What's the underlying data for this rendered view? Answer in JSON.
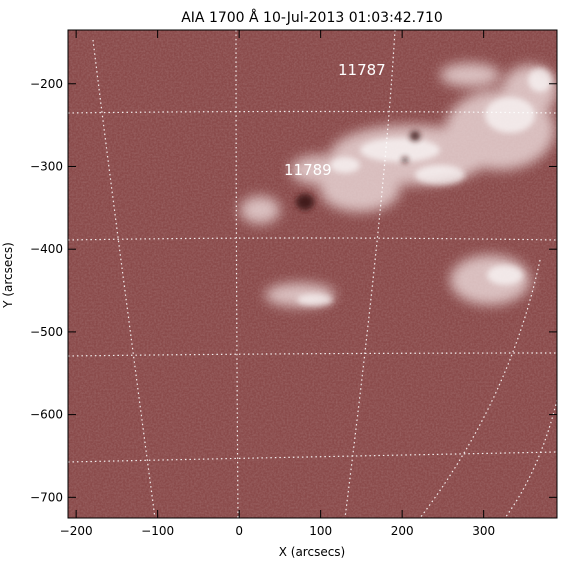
{
  "title": "AIA 1700 Å 10-Jul-2013 01:03:42.710",
  "x_axis": {
    "label": "X (arcsecs)",
    "range": [
      -210,
      390
    ],
    "ticks": [
      -200,
      -100,
      0,
      100,
      200,
      300
    ],
    "tick_labels": [
      "−200",
      "−100",
      "0",
      "100",
      "200",
      "300"
    ]
  },
  "y_axis": {
    "label": "Y (arcsecs)",
    "range": [
      -725,
      -135
    ],
    "ticks": [
      -200,
      -300,
      -400,
      -500,
      -600,
      -700
    ],
    "tick_labels": [
      "−200",
      "−300",
      "−400",
      "−500",
      "−600",
      "−700"
    ]
  },
  "regions": [
    {
      "label": "11787",
      "x": 160,
      "y": -160
    },
    {
      "label": "11789",
      "x": 85,
      "y": -300
    }
  ],
  "colors": {
    "background": "#8a4a4a",
    "bright": "#ffffff",
    "grid": "#ffffff"
  }
}
